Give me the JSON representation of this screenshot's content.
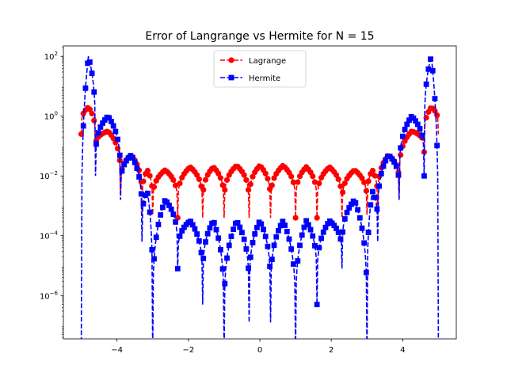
{
  "chart_data": {
    "type": "line",
    "title": "Error of Langrange vs Hermite for N = 15",
    "xlabel": "",
    "ylabel": "",
    "xlim": [
      -5.5,
      5.5
    ],
    "ylim_log10": [
      -7.45,
      2.35
    ],
    "yscale": "log",
    "grid": false,
    "legend_position": "upper center",
    "xticks": [
      -4,
      -2,
      0,
      2,
      4
    ],
    "xtick_labels": [
      "−4",
      "−2",
      "0",
      "2",
      "4"
    ],
    "yticks_log10": [
      2,
      0,
      -2,
      -4,
      -6
    ],
    "ytick_labels": [
      {
        "base": "10",
        "exp": "2"
      },
      {
        "base": "10",
        "exp": "0"
      },
      {
        "base": "10",
        "exp": "−2"
      },
      {
        "base": "10",
        "exp": "−4"
      },
      {
        "base": "10",
        "exp": "−6"
      }
    ],
    "nodes": [
      -5.0,
      -4.6,
      -3.9,
      -3.3,
      -3.0,
      -2.3,
      -1.6,
      -1.0,
      -0.3,
      0.3,
      1.0,
      1.6,
      2.3,
      3.0,
      3.3,
      3.9,
      4.6,
      5.0
    ],
    "series": [
      {
        "name": "Lagrange",
        "color": "#ff0000",
        "marker": "circle",
        "linestyle": "dashed",
        "node_floor_log10": [
          -0.6,
          -1.2,
          -2.6,
          -3.3,
          -3.3,
          -3.4,
          -3.4,
          -3.4,
          -3.4,
          -3.4,
          -3.4,
          -3.4,
          -3.4,
          -3.3,
          -3.3,
          -2.6,
          -1.2,
          -0.6
        ],
        "peak_log10": [
          0.3,
          -0.5,
          -1.3,
          -1.8,
          -1.8,
          -1.7,
          -1.7,
          -1.65,
          -1.65,
          -1.65,
          -1.7,
          -1.7,
          -1.8,
          -1.8,
          -1.3,
          -0.5,
          0.3
        ]
      },
      {
        "name": "Hermite",
        "color": "#0000ff",
        "marker": "square",
        "linestyle": "dashed",
        "node_floor_log10": [
          -8.0,
          -2.0,
          -2.8,
          -4.2,
          -8.0,
          -5.1,
          -6.3,
          -8.0,
          -6.9,
          -6.9,
          -8.0,
          -6.3,
          -5.1,
          -8.0,
          -4.2,
          -2.8,
          -2.0,
          -8.0
        ],
        "peak_log10": [
          2.0,
          0.0,
          -1.3,
          -2.5,
          -2.8,
          -3.5,
          -3.5,
          -3.5,
          -3.5,
          -3.5,
          -3.5,
          -3.5,
          -2.8,
          -2.5,
          -1.3,
          0.0,
          2.0
        ]
      }
    ]
  }
}
